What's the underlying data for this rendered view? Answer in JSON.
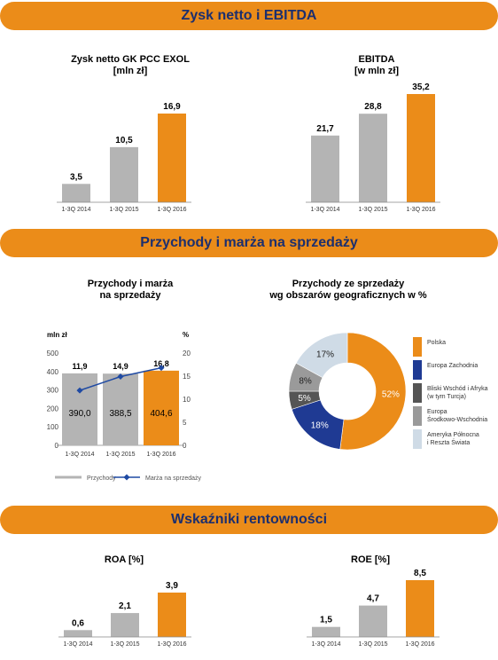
{
  "colors": {
    "banner": "#eb8c19",
    "banner_text": "#1c2f6e",
    "grey_bar": "#b4b4b4",
    "orange_bar": "#eb8c19",
    "line": "#1f4aa3",
    "navy": "#1f3a93",
    "dark_grey": "#555555",
    "mid_grey": "#9a9a9a",
    "light_blue": "#cfdbe6"
  },
  "sections": {
    "s1": "Zysk netto i EBITDA",
    "s2": "Przychody i marża na sprzedaży",
    "s3": "Wskaźniki rentowności"
  },
  "chart_data": [
    {
      "id": "net",
      "type": "bar",
      "title": "Zysk netto GK PCC EXOL",
      "subtitle": "[mln zł]",
      "categories": [
        "1-3Q 2014",
        "1-3Q 2015",
        "1-3Q 2016"
      ],
      "values": [
        3.5,
        10.5,
        16.9
      ],
      "labels": [
        "3,5",
        "10,5",
        "16,9"
      ]
    },
    {
      "id": "ebitda",
      "type": "bar",
      "title": "EBITDA",
      "subtitle": "[w mln zł]",
      "categories": [
        "1-3Q 2014",
        "1-3Q 2015",
        "1-3Q 2016"
      ],
      "values": [
        21.7,
        28.8,
        35.2
      ],
      "labels": [
        "21,7",
        "28,8",
        "35,2"
      ]
    },
    {
      "id": "rev",
      "type": "bar",
      "title": "Przychody i marża",
      "subtitle": "na sprzedaży",
      "categories": [
        "1-3Q 2014",
        "1-3Q 2015",
        "1-3Q 2016"
      ],
      "left_unit": "mln zł",
      "right_unit": "%",
      "ylim": [
        0,
        500
      ],
      "y_ticks": [
        "0",
        "100",
        "200",
        "300",
        "400",
        "500"
      ],
      "y2lim": [
        0,
        20
      ],
      "y2_ticks": [
        "0",
        "5",
        "10",
        "15",
        "20"
      ],
      "series": [
        {
          "name": "Przychody",
          "values": [
            390.0,
            388.5,
            404.6
          ],
          "labels": [
            "390,0",
            "388,5",
            "404,6"
          ]
        },
        {
          "name": "Marża na sprzedaży",
          "values": [
            11.9,
            14.9,
            16.8
          ],
          "labels": [
            "11,9",
            "14,9",
            "16,8"
          ]
        }
      ]
    },
    {
      "id": "geo",
      "type": "pie",
      "title": "Przychody ze sprzedaży",
      "subtitle": "wg obszarów geograficznych w %",
      "slices": [
        {
          "name": "Polska",
          "value": 52,
          "label": "52%"
        },
        {
          "name": "Europa Zachodnia",
          "value": 18,
          "label": "18%"
        },
        {
          "name": "Bliski Wschód i Afryka (w tym Turcja)",
          "value": 5,
          "label": "5%"
        },
        {
          "name": "Europa Środkowo-Wschodnia",
          "value": 8,
          "label": "8%"
        },
        {
          "name": "Ameryka Północna i Reszta Świata",
          "value": 17,
          "label": "17%"
        }
      ]
    },
    {
      "id": "roa",
      "type": "bar",
      "title": "ROA [%]",
      "categories": [
        "1-3Q 2014",
        "1-3Q 2015",
        "1-3Q 2016"
      ],
      "values": [
        0.6,
        2.1,
        3.9
      ],
      "labels": [
        "0,6",
        "2,1",
        "3,9"
      ]
    },
    {
      "id": "roe",
      "type": "bar",
      "title": "ROE [%]",
      "categories": [
        "1-3Q 2014",
        "1-3Q 2015",
        "1-3Q 2016"
      ],
      "values": [
        1.5,
        4.7,
        8.5
      ],
      "labels": [
        "1,5",
        "4,7",
        "8,5"
      ]
    }
  ],
  "pie_legend": [
    {
      "line1": "Polska",
      "line2": "",
      "color": "#eb8c19"
    },
    {
      "line1": "Europa Zachodnia",
      "line2": "",
      "color": "#1f3a93"
    },
    {
      "line1": "Bliski Wschód i Afryka",
      "line2": "(w tym Turcja)",
      "color": "#555555"
    },
    {
      "line1": "Europa",
      "line2": "Środkowo-Wschodnia",
      "color": "#9a9a9a"
    },
    {
      "line1": "Ameryka Północna",
      "line2": "i Reszta Świata",
      "color": "#cfdbe6"
    }
  ]
}
